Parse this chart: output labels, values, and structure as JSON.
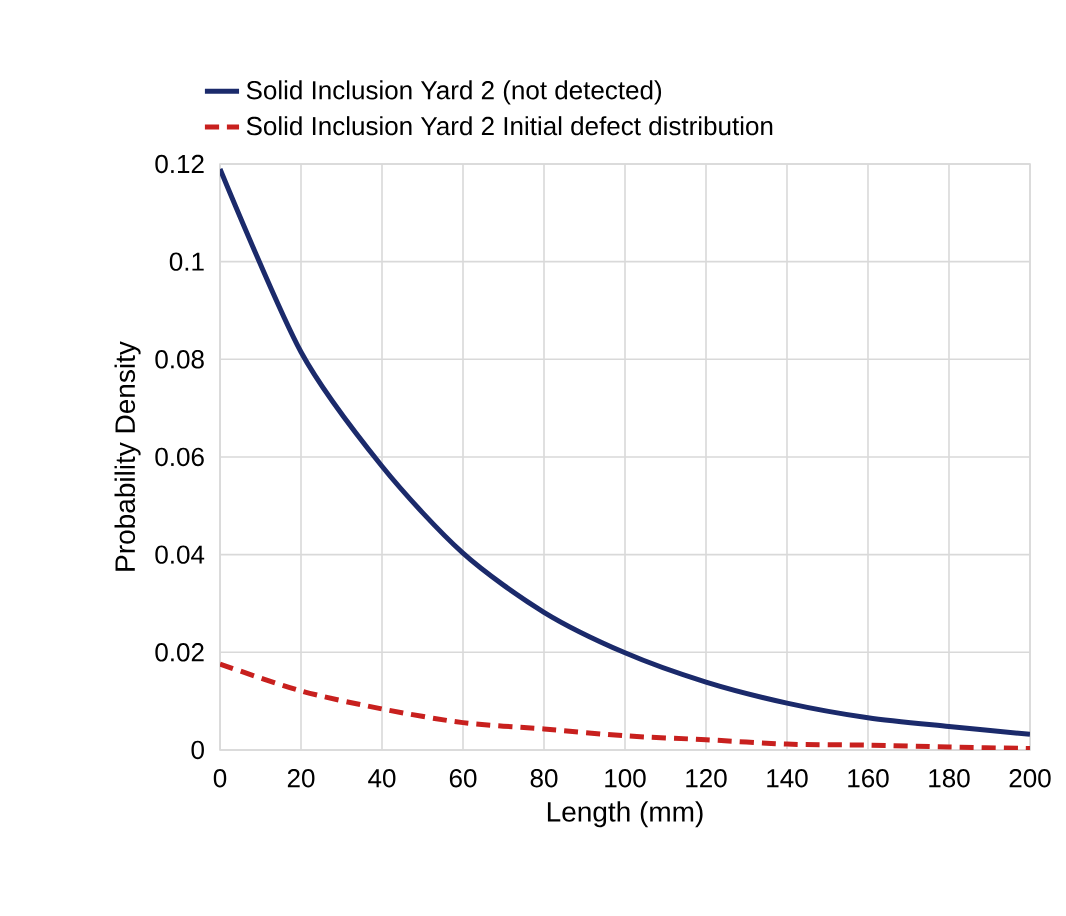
{
  "chart_data": {
    "type": "line",
    "xlabel": "Length (mm)",
    "ylabel": "Probability Density",
    "x": [
      0,
      20,
      40,
      60,
      80,
      100,
      120,
      140,
      160,
      180,
      200
    ],
    "series": [
      {
        "name": "Solid Inclusion Yard 2 (not detected)",
        "color": "#1b2a6b",
        "line_style": "solid",
        "values": [
          0.119,
          0.0815,
          0.0581,
          0.0403,
          0.0282,
          0.0199,
          0.0139,
          0.0096,
          0.0066,
          0.0048,
          0.0032
        ]
      },
      {
        "name": "Solid Inclusion Yard 2 Initial defect distribution",
        "color": "#c8201e",
        "line_style": "dashed",
        "values": [
          0.0176,
          0.0121,
          0.0084,
          0.0056,
          0.0043,
          0.0029,
          0.0021,
          0.0012,
          0.001,
          0.0006,
          0.0003
        ]
      }
    ],
    "xlim": [
      0,
      200
    ],
    "xticks": [
      0,
      20,
      40,
      60,
      80,
      100,
      120,
      140,
      160,
      180,
      200
    ],
    "ylim": [
      0,
      0.12
    ],
    "yticks": [
      0,
      0.02,
      0.04,
      0.06,
      0.08,
      0.1,
      0.12
    ],
    "grid": true,
    "legend": "top",
    "marker": "none"
  }
}
